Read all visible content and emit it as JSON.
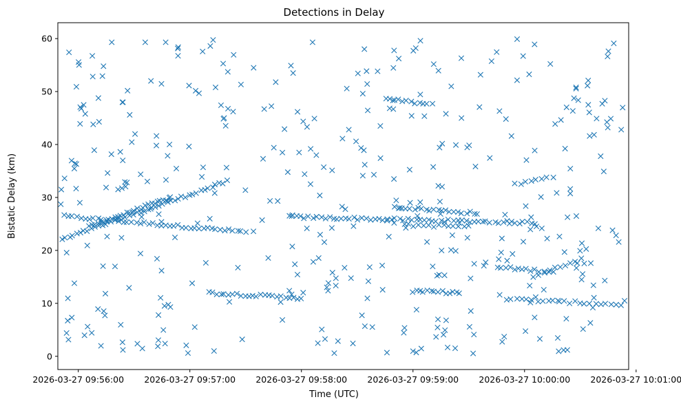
{
  "chart_data": {
    "type": "scatter",
    "title": "Detections in Delay",
    "xlabel": "Time (UTC)",
    "ylabel": "Bistatic Delay (km)",
    "marker": "x",
    "color": "#1f77b4",
    "grid": false,
    "legend": "none",
    "x_unit": "time (UTC)",
    "xlim": [
      "2026-03-27 09:55:49",
      "2026-03-27 10:00:56"
    ],
    "ylim": [
      -2.5,
      63
    ],
    "x_ticks": [
      "2026-03-27 09:56:00",
      "2026-03-27 09:57:00",
      "2026-03-27 09:58:00",
      "2026-03-27 09:59:00",
      "2026-03-27 10:00:00",
      "2026-03-27 10:01:00"
    ],
    "y_ticks": [
      0,
      10,
      20,
      30,
      40,
      50,
      60
    ],
    "tracks": [
      {
        "description": "descending track",
        "from": [
          "2026-03-27 09:55:50",
          26.5
        ],
        "to": [
          "2026-03-27 09:57:30",
          23.5
        ],
        "points": 45
      },
      {
        "description": "ascending track",
        "from": [
          "2026-03-27 09:55:51",
          22.0
        ],
        "to": [
          "2026-03-27 09:57:20",
          33.0
        ],
        "points": 45
      },
      {
        "description": "crossing track",
        "from": [
          "2026-03-27 09:56:06",
          24.5
        ],
        "to": [
          "2026-03-27 09:56:50",
          30.0
        ],
        "points": 30
      },
      {
        "description": "near-flat track",
        "from": [
          "2026-03-27 09:57:55",
          26.3
        ],
        "to": [
          "2026-03-27 10:00:06",
          25.2
        ],
        "points": 60
      },
      {
        "description": "track",
        "from": [
          "2026-03-27 09:58:50",
          28.2
        ],
        "to": [
          "2026-03-27 09:59:35",
          27.0
        ],
        "points": 22
      },
      {
        "description": "track",
        "from": [
          "2026-03-27 09:58:55",
          24.8
        ],
        "to": [
          "2026-03-27 09:59:30",
          24.5
        ],
        "points": 14
      },
      {
        "description": "track",
        "from": [
          "2026-03-27 09:59:45",
          16.8
        ],
        "to": [
          "2026-03-27 10:00:15",
          16.0
        ],
        "points": 14
      },
      {
        "description": "track",
        "from": [
          "2026-03-27 10:00:05",
          15.0
        ],
        "to": [
          "2026-03-27 10:00:30",
          18.5
        ],
        "points": 10
      },
      {
        "description": "track",
        "from": [
          "2026-03-27 09:57:10",
          12.0
        ],
        "to": [
          "2026-03-27 09:58:00",
          11.0
        ],
        "points": 24
      },
      {
        "description": "track",
        "from": [
          "2026-03-27 09:59:50",
          10.8
        ],
        "to": [
          "2026-03-27 10:00:55",
          9.7
        ],
        "points": 24
      },
      {
        "description": "track",
        "from": [
          "2026-03-27 09:59:00",
          12.3
        ],
        "to": [
          "2026-03-27 09:59:25",
          12.0
        ],
        "points": 14
      },
      {
        "description": "track",
        "from": [
          "2026-03-27 09:58:45",
          48.6
        ],
        "to": [
          "2026-03-27 09:59:10",
          47.5
        ],
        "points": 12
      },
      {
        "description": "track",
        "from": [
          "2026-03-27 09:59:55",
          32.5
        ],
        "to": [
          "2026-03-27 10:00:15",
          34.0
        ],
        "points": 8
      }
    ],
    "points_sample": [
      [
        "2026-03-27 09:55:50",
        58.7
      ],
      [
        "2026-03-27 09:55:55",
        57.4
      ],
      [
        "2026-03-27 09:56:18",
        59.3
      ],
      [
        "2026-03-27 09:56:36",
        59.3
      ],
      [
        "2026-03-27 09:56:47",
        59.3
      ],
      [
        "2026-03-27 09:57:11",
        58.6
      ],
      [
        "2026-03-27 09:58:06",
        59.3
      ],
      [
        "2026-03-27 09:59:04",
        59.6
      ],
      [
        "2026-03-27 09:59:56",
        59.9
      ],
      [
        "2026-03-27 10:00:48",
        59.1
      ],
      [
        "2026-03-27 09:55:50",
        2.9
      ],
      [
        "2026-03-27 09:56:24",
        1.2
      ],
      [
        "2026-03-27 09:57:13",
        1.0
      ],
      [
        "2026-03-27 09:58:46",
        0.7
      ],
      [
        "2026-03-27 10:00:23",
        1.2
      ],
      [
        "2026-03-27 09:55:59",
        36.3
      ],
      [
        "2026-03-27 09:56:08",
        43.8
      ],
      [
        "2026-03-27 09:56:42",
        39.8
      ],
      [
        "2026-03-27 09:57:40",
        46.7
      ],
      [
        "2026-03-27 10:00:35",
        41.6
      ],
      [
        "2026-03-27 10:00:52",
        42.8
      ],
      [
        "2026-03-27 09:58:33",
        49.6
      ],
      [
        "2026-03-27 09:55:48",
        13.8
      ],
      [
        "2026-03-27 09:56:05",
        5.6
      ]
    ]
  }
}
